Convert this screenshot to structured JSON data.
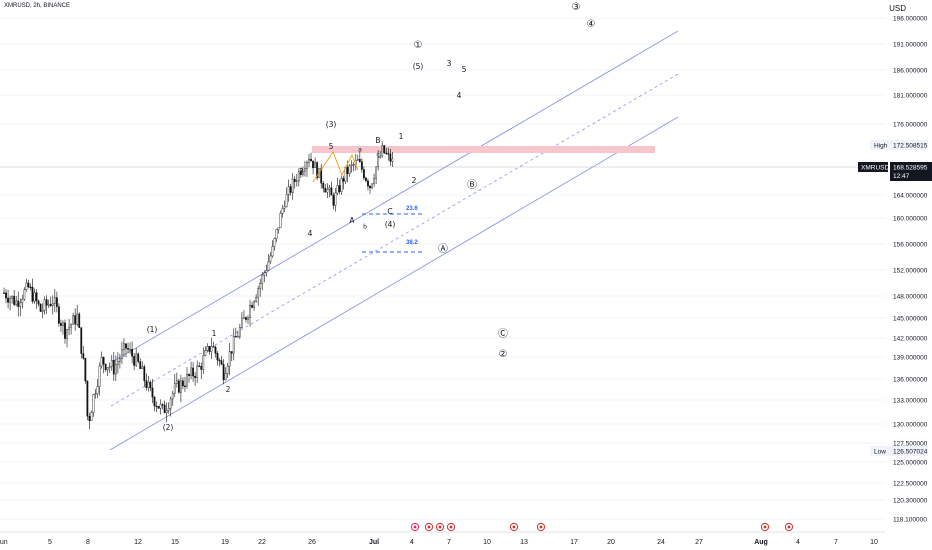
{
  "header": {
    "symbol_line": "XMRUSD, 2h, BINANCE",
    "currency": "USD"
  },
  "colors": {
    "wave_line": "#8b95e8",
    "candle": "#111111",
    "zone": "#f7c6cd",
    "fib": "#2962ff",
    "orange": "#f39c12",
    "badge_bg": "#131722"
  },
  "price_axis": {
    "ticks": [
      "196.000000",
      "191.000000",
      "186.000000",
      "181.000000",
      "176.000000",
      "164.000000",
      "160.000000",
      "156.000000",
      "152.000000",
      "148.000000",
      "145.000000",
      "142.000000",
      "139.000000",
      "136.000000",
      "133.000000",
      "130.000000",
      "127.500000",
      "125.000000",
      "122.500000",
      "120.300000",
      "118.100000"
    ],
    "high_label": "High",
    "high_value": "172.508515",
    "low_label": "Low",
    "low_value": "126.507024",
    "current_symbol": "XMRUSD",
    "current_price": "168.528595",
    "countdown": "12:47"
  },
  "time_axis": {
    "ticks": [
      "Jun",
      "5",
      "8",
      "12",
      "15",
      "19",
      "22",
      "26",
      "Jul",
      "4",
      "7",
      "10",
      "13",
      "17",
      "20",
      "24",
      "27",
      "Aug",
      "4",
      "7",
      "10"
    ]
  },
  "fib_levels": [
    {
      "label": "23.6"
    },
    {
      "label": "38.2"
    }
  ],
  "wave_labels": [
    "(1)",
    "(2)",
    "1",
    "2",
    "3",
    "4",
    "5",
    "(3)",
    "A",
    "b",
    "a",
    "c",
    "B",
    "C",
    "(4)",
    "1",
    "2",
    "①",
    "(5)",
    "3",
    "5",
    "4",
    "③",
    "④",
    "Ⓑ",
    "Ⓐ",
    "Ⓒ",
    "②"
  ],
  "chart_data": {
    "type": "line",
    "title": "XMRUSD, 2h, BINANCE",
    "xlabel": "",
    "ylabel": "USD",
    "ylim": [
      118.1,
      196.0
    ],
    "high": 172.508515,
    "low": 126.507024,
    "last": 168.528595,
    "series": [
      {
        "name": "XMRUSD",
        "points": [
          [
            "Jun 2",
            148.5
          ],
          [
            "Jun 3",
            147.2
          ],
          [
            "Jun 4",
            149.3
          ],
          [
            "Jun 5",
            146.0
          ],
          [
            "Jun 6",
            147.5
          ],
          [
            "Jun 7",
            143.0
          ],
          [
            "Jun 8",
            145.2
          ],
          [
            "Jun 9",
            131.0
          ],
          [
            "Jun 10",
            138.5
          ],
          [
            "Jun 11",
            137.5
          ],
          [
            "Jun 12",
            140.5
          ],
          [
            "Jun 13",
            138.0
          ],
          [
            "Jun 14",
            134.0
          ],
          [
            "Jun 15",
            131.5
          ],
          [
            "Jun 16",
            134.5
          ],
          [
            "Jun 17",
            136.0
          ],
          [
            "Jun 18",
            137.5
          ],
          [
            "Jun 19",
            141.0
          ],
          [
            "Jun 20",
            137.0
          ],
          [
            "Jun 21",
            142.0
          ],
          [
            "Jun 22",
            146.0
          ],
          [
            "Jun 23",
            150.0
          ],
          [
            "Jun 24",
            155.0
          ],
          [
            "Jun 25",
            163.0
          ],
          [
            "Jun 26",
            167.0
          ],
          [
            "Jun 27",
            170.5
          ],
          [
            "Jun 28",
            166.5
          ],
          [
            "Jun 29",
            163.0
          ],
          [
            "Jun 30",
            167.5
          ],
          [
            "Jul 1",
            169.5
          ],
          [
            "Jul 2",
            165.5
          ],
          [
            "Jul 3",
            171.5
          ],
          [
            "Jul 4",
            169.0
          ]
        ]
      }
    ]
  }
}
